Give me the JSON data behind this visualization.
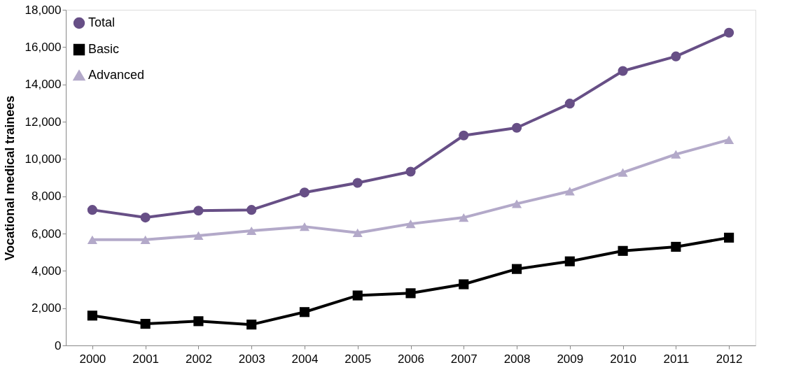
{
  "chart_data": {
    "type": "line",
    "ylabel": "Vocational medical trainees",
    "categories": [
      "2000",
      "2001",
      "2002",
      "2003",
      "2004",
      "2005",
      "2006",
      "2007",
      "2008",
      "2009",
      "2010",
      "2011",
      "2012"
    ],
    "series": [
      {
        "name": "Total",
        "color": "#674f86",
        "marker": "circle",
        "values": [
          7270,
          6860,
          7230,
          7270,
          8200,
          8720,
          9320,
          11260,
          11670,
          12970,
          14720,
          15500,
          16770
        ]
      },
      {
        "name": "Basic",
        "color": "#000000",
        "marker": "square",
        "values": [
          1600,
          1160,
          1300,
          1120,
          1790,
          2680,
          2800,
          3280,
          4100,
          4510,
          5070,
          5290,
          5780
        ]
      },
      {
        "name": "Advanced",
        "color": "#b3a9c9",
        "marker": "triangle",
        "values": [
          5670,
          5670,
          5890,
          6150,
          6370,
          6040,
          6520,
          6860,
          7600,
          8270,
          9280,
          10250,
          11030
        ]
      }
    ],
    "ylim": [
      0,
      18000
    ],
    "yticks": [
      0,
      {
        "value": 2000,
        "label": "2,000"
      },
      {
        "value": 4000,
        "label": "4,000"
      },
      {
        "value": 6000,
        "label": "6,000"
      },
      {
        "value": 8000,
        "label": "8,000"
      },
      {
        "value": 10000,
        "label": "10,000"
      },
      {
        "value": 12000,
        "label": "12,000"
      },
      {
        "value": 14000,
        "label": "14,000"
      },
      {
        "value": 16000,
        "label": "16,000"
      },
      {
        "value": 18000,
        "label": "18,000"
      }
    ],
    "grid": false,
    "legend": "top left",
    "line_style": "solid"
  }
}
